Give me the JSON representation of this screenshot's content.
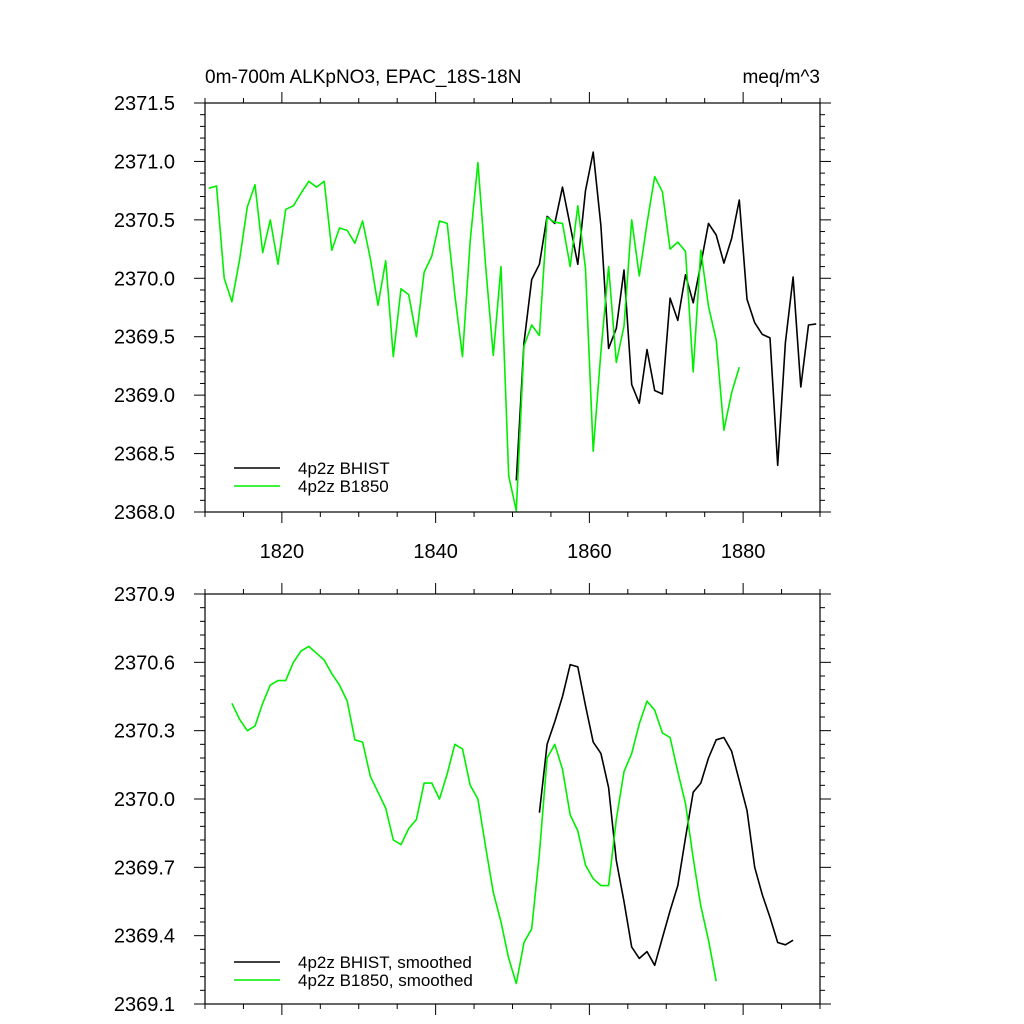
{
  "colors": {
    "bhist": "#000000",
    "b1850": "#00ee00"
  },
  "chart_data": [
    {
      "type": "line",
      "title": "0m-700m ALKpNO3, EPAC_18S-18N",
      "units": "meq/m^3",
      "xlim": [
        1810,
        1890
      ],
      "ylim": [
        2368.0,
        2371.5
      ],
      "x_ticks": [
        1820,
        1840,
        1860,
        1880
      ],
      "x_tick_labels": [
        "1820",
        "1840",
        "1860",
        "1880"
      ],
      "y_ticks": [
        2368.0,
        2368.5,
        2369.0,
        2369.5,
        2370.0,
        2370.5,
        2371.0,
        2371.5
      ],
      "y_tick_labels": [
        "2368.0",
        "2368.5",
        "2369.0",
        "2369.5",
        "2370.0",
        "2370.5",
        "2371.0",
        "2371.5"
      ],
      "legend_position": "bottom-left",
      "series": [
        {
          "name": "4p2z BHIST",
          "color": "#000000",
          "x": [
            1850.5,
            1851.5,
            1852.5,
            1853.5,
            1854.5,
            1855.5,
            1856.5,
            1857.5,
            1858.5,
            1859.5,
            1860.5,
            1861.5,
            1862.5,
            1863.5,
            1864.5,
            1865.5,
            1866.5,
            1867.5,
            1868.5,
            1869.5,
            1870.5,
            1871.5,
            1872.5,
            1873.5,
            1874.5,
            1875.5,
            1876.5,
            1877.5,
            1878.5,
            1879.5,
            1880.5,
            1881.5,
            1882.5,
            1883.5,
            1884.5,
            1885.5,
            1886.5,
            1887.5,
            1888.5,
            1889.5
          ],
          "y": [
            2368.27,
            2369.45,
            2369.99,
            2370.12,
            2370.53,
            2370.47,
            2370.78,
            2370.45,
            2370.12,
            2370.75,
            2371.08,
            2370.45,
            2369.4,
            2369.57,
            2370.07,
            2369.09,
            2368.93,
            2369.39,
            2369.04,
            2369.01,
            2369.83,
            2369.64,
            2370.03,
            2369.79,
            2370.12,
            2370.47,
            2370.37,
            2370.13,
            2370.34,
            2370.67,
            2369.82,
            2369.62,
            2369.52,
            2369.49,
            2368.4,
            2369.45,
            2370.01,
            2369.07,
            2369.6,
            2369.61
          ]
        },
        {
          "name": "4p2z B1850",
          "color": "#00ee00",
          "x": [
            1810.5,
            1811.5,
            1812.5,
            1813.5,
            1814.5,
            1815.5,
            1816.5,
            1817.5,
            1818.5,
            1819.5,
            1820.5,
            1821.5,
            1822.5,
            1823.5,
            1824.5,
            1825.5,
            1826.5,
            1827.5,
            1828.5,
            1829.5,
            1830.5,
            1831.5,
            1832.5,
            1833.5,
            1834.5,
            1835.5,
            1836.5,
            1837.5,
            1838.5,
            1839.5,
            1840.5,
            1841.5,
            1842.5,
            1843.5,
            1844.5,
            1845.5,
            1846.5,
            1847.5,
            1848.5,
            1849.5,
            1850.5,
            1851.5,
            1852.5,
            1853.5,
            1854.5,
            1855.5,
            1856.5,
            1857.5,
            1858.5,
            1859.5,
            1860.5,
            1861.5,
            1862.5,
            1863.5,
            1864.5,
            1865.5,
            1866.5,
            1867.5,
            1868.5,
            1869.5,
            1870.5,
            1871.5,
            1872.5,
            1873.5,
            1874.5,
            1875.5,
            1876.5,
            1877.5,
            1878.5,
            1879.5
          ],
          "y": [
            2370.77,
            2370.79,
            2370.0,
            2369.8,
            2370.16,
            2370.61,
            2370.8,
            2370.22,
            2370.5,
            2370.12,
            2370.59,
            2370.62,
            2370.73,
            2370.83,
            2370.78,
            2370.83,
            2370.24,
            2370.43,
            2370.41,
            2370.3,
            2370.49,
            2370.17,
            2369.77,
            2370.15,
            2369.33,
            2369.91,
            2369.86,
            2369.5,
            2370.05,
            2370.19,
            2370.49,
            2370.47,
            2369.86,
            2369.33,
            2370.32,
            2370.99,
            2370.11,
            2369.34,
            2370.1,
            2368.31,
            2368.01,
            2369.42,
            2369.6,
            2369.51,
            2370.52,
            2370.48,
            2370.47,
            2370.1,
            2370.62,
            2370.08,
            2368.52,
            2369.37,
            2370.1,
            2369.28,
            2369.59,
            2370.5,
            2370.02,
            2370.47,
            2370.87,
            2370.74,
            2370.25,
            2370.31,
            2370.23,
            2369.2,
            2370.24,
            2369.76,
            2369.47,
            2368.7,
            2369.02,
            2369.24
          ]
        }
      ]
    },
    {
      "type": "line",
      "xlim": [
        1810,
        1890
      ],
      "ylim": [
        2369.1,
        2370.9
      ],
      "x_ticks": [
        1820,
        1840,
        1860,
        1880
      ],
      "x_tick_labels": [],
      "y_ticks": [
        2369.1,
        2369.4,
        2369.7,
        2370.0,
        2370.3,
        2370.6,
        2370.9
      ],
      "y_tick_labels": [
        "2369.1",
        "2369.4",
        "2369.7",
        "2370.0",
        "2370.3",
        "2370.6",
        "2370.9"
      ],
      "legend_position": "bottom-left",
      "series": [
        {
          "name": "4p2z BHIST, smoothed",
          "color": "#000000",
          "x": [
            1853.5,
            1854.5,
            1855.5,
            1856.5,
            1857.5,
            1858.5,
            1859.5,
            1860.5,
            1861.5,
            1862.5,
            1863.5,
            1864.5,
            1865.5,
            1866.5,
            1867.5,
            1868.5,
            1869.5,
            1870.5,
            1871.5,
            1872.5,
            1873.5,
            1874.5,
            1875.5,
            1876.5,
            1877.5,
            1878.5,
            1879.5,
            1880.5,
            1881.5,
            1882.5,
            1883.5,
            1884.5,
            1885.5,
            1886.5
          ],
          "y": [
            2369.94,
            2370.24,
            2370.34,
            2370.45,
            2370.59,
            2370.58,
            2370.41,
            2370.25,
            2370.2,
            2370.05,
            2369.73,
            2369.55,
            2369.35,
            2369.3,
            2369.33,
            2369.27,
            2369.39,
            2369.51,
            2369.62,
            2369.83,
            2370.03,
            2370.07,
            2370.18,
            2370.26,
            2370.27,
            2370.21,
            2370.08,
            2369.95,
            2369.7,
            2369.58,
            2369.48,
            2369.37,
            2369.36,
            2369.38
          ]
        },
        {
          "name": "4p2z B1850, smoothed",
          "color": "#00ee00",
          "x": [
            1813.5,
            1814.5,
            1815.5,
            1816.5,
            1817.5,
            1818.5,
            1819.5,
            1820.5,
            1821.5,
            1822.5,
            1823.5,
            1824.5,
            1825.5,
            1826.5,
            1827.5,
            1828.5,
            1829.5,
            1830.5,
            1831.5,
            1832.5,
            1833.5,
            1834.5,
            1835.5,
            1836.5,
            1837.5,
            1838.5,
            1839.5,
            1840.5,
            1841.5,
            1842.5,
            1843.5,
            1844.5,
            1845.5,
            1846.5,
            1847.5,
            1848.5,
            1849.5,
            1850.5,
            1851.5,
            1852.5,
            1853.5,
            1854.5,
            1855.5,
            1856.5,
            1857.5,
            1858.5,
            1859.5,
            1860.5,
            1861.5,
            1862.5,
            1863.5,
            1864.5,
            1865.5,
            1866.5,
            1867.5,
            1868.5,
            1869.5,
            1870.5,
            1871.5,
            1872.5,
            1873.5,
            1874.5,
            1875.5,
            1876.5
          ],
          "y": [
            2370.42,
            2370.35,
            2370.3,
            2370.32,
            2370.42,
            2370.5,
            2370.52,
            2370.52,
            2370.6,
            2370.65,
            2370.67,
            2370.64,
            2370.61,
            2370.55,
            2370.5,
            2370.43,
            2370.26,
            2370.25,
            2370.1,
            2370.03,
            2369.96,
            2369.82,
            2369.8,
            2369.87,
            2369.91,
            2370.07,
            2370.07,
            2370.0,
            2370.11,
            2370.24,
            2370.22,
            2370.06,
            2370.0,
            2369.79,
            2369.59,
            2369.46,
            2369.3,
            2369.19,
            2369.37,
            2369.43,
            2369.76,
            2370.18,
            2370.24,
            2370.13,
            2369.93,
            2369.86,
            2369.71,
            2369.65,
            2369.62,
            2369.62,
            2369.91,
            2370.12,
            2370.2,
            2370.33,
            2370.43,
            2370.39,
            2370.29,
            2370.27,
            2370.12,
            2369.98,
            2369.74,
            2369.53,
            2369.38,
            2369.2
          ]
        }
      ]
    }
  ]
}
